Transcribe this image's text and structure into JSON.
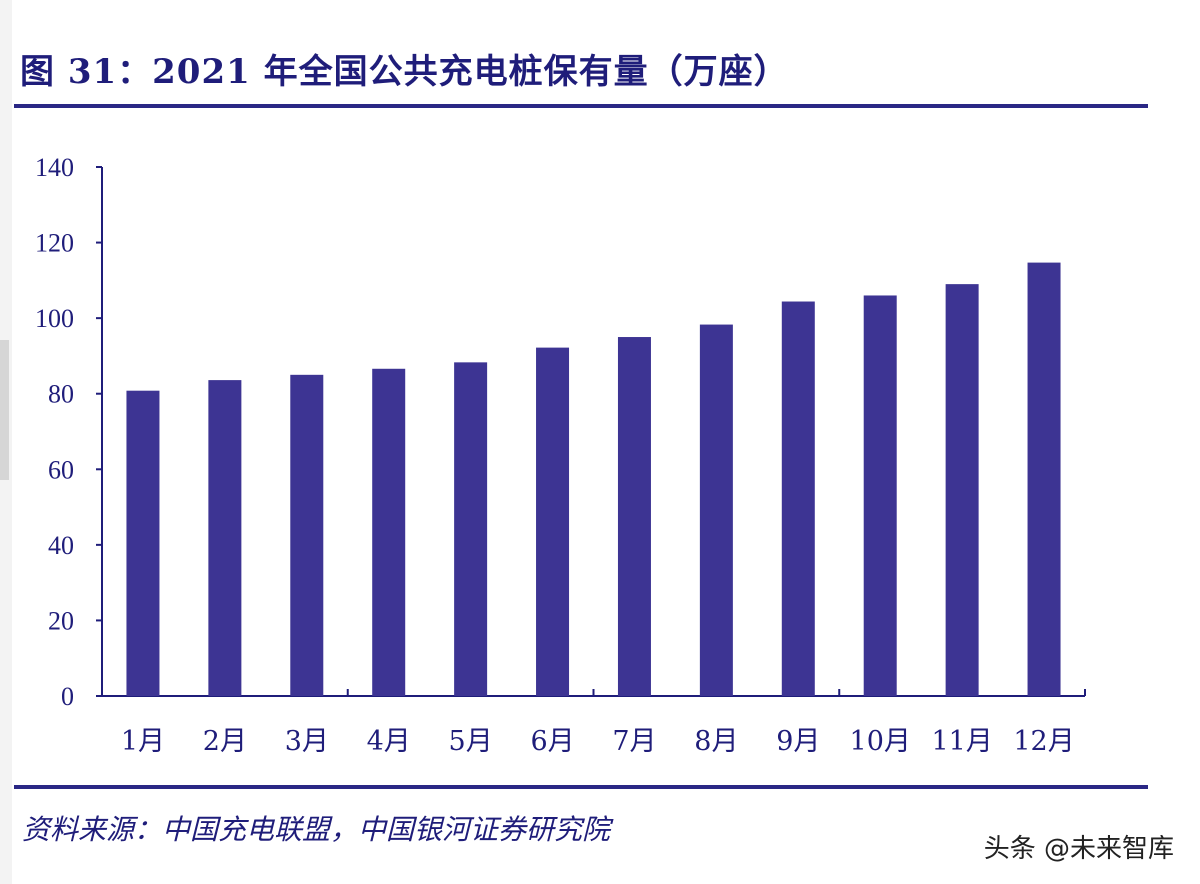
{
  "figure": {
    "title": "图 31：2021 年全国公共充电桩保有量（万座）",
    "source": "资料来源：中国充电联盟，中国银河证券研究院",
    "watermark": "头条 @未来智库"
  },
  "colors": {
    "bar": "#3d3493",
    "axis": "#1f1d7a",
    "text": "#1f1d7a",
    "rule": "#2a2785"
  },
  "chart_data": {
    "type": "bar",
    "title": "图 31：2021 年全国公共充电桩保有量（万座）",
    "xlabel": "",
    "ylabel": "",
    "categories": [
      "1月",
      "2月",
      "3月",
      "4月",
      "5月",
      "6月",
      "7月",
      "8月",
      "9月",
      "10月",
      "11月",
      "12月"
    ],
    "values": [
      80.8,
      83.6,
      85.0,
      86.6,
      88.3,
      92.2,
      95.0,
      98.3,
      104.4,
      106.0,
      109.0,
      114.7
    ],
    "ylim": [
      0,
      140
    ],
    "yticks": [
      0,
      20,
      40,
      60,
      80,
      100,
      120,
      140
    ],
    "grid": false,
    "legend": "none"
  }
}
